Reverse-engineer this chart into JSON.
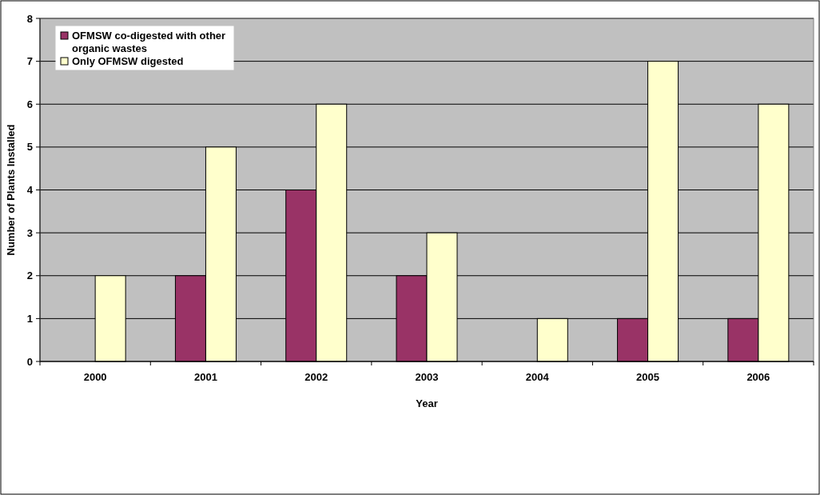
{
  "chart_data": {
    "type": "bar",
    "xlabel": "Year",
    "ylabel": "Number of Plants Installed",
    "categories": [
      "2000",
      "2001",
      "2002",
      "2003",
      "2004",
      "2005",
      "2006"
    ],
    "series": [
      {
        "name": "OFMSW co-digested with other organic wastes",
        "color": "#993366",
        "values": [
          0,
          2,
          4,
          2,
          0,
          1,
          1
        ]
      },
      {
        "name": "Only OFMSW digested",
        "color": "#ffffcc",
        "values": [
          2,
          5,
          6,
          3,
          1,
          7,
          6
        ]
      }
    ],
    "ylim": [
      0,
      8
    ],
    "yticks": [
      0,
      1,
      2,
      3,
      4,
      5,
      6,
      7,
      8
    ],
    "grid": "y",
    "legend": "top left"
  }
}
